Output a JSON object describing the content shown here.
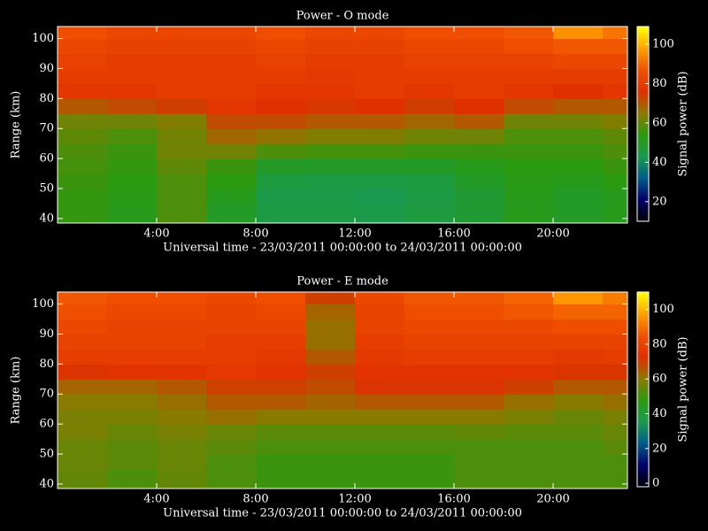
{
  "chart_data": [
    {
      "type": "heatmap",
      "title": "Power - O mode",
      "xlabel": "Universal time - 23/03/2011 00:00:00 to 24/03/2011 00:00:00",
      "ylabel": "Range (km)",
      "colorbar_label": "Signal power (dB)",
      "x_edges": [
        0,
        2,
        4,
        6,
        8,
        10,
        12,
        14,
        16,
        18,
        20,
        22,
        23
      ],
      "y_edges": [
        38.5,
        45,
        50,
        55,
        60,
        65,
        70,
        75,
        80,
        85,
        90,
        95,
        100,
        104
      ],
      "z": [
        [
          55,
          52,
          58,
          50,
          45,
          45,
          44,
          46,
          48,
          52,
          50,
          52
        ],
        [
          55,
          53,
          58,
          52,
          44,
          44,
          43,
          45,
          48,
          52,
          50,
          52
        ],
        [
          56,
          54,
          58,
          54,
          46,
          45,
          45,
          46,
          50,
          53,
          52,
          54
        ],
        [
          57,
          55,
          60,
          56,
          50,
          50,
          50,
          50,
          52,
          54,
          54,
          56
        ],
        [
          58,
          56,
          62,
          62,
          58,
          57,
          57,
          56,
          56,
          56,
          56,
          58
        ],
        [
          60,
          58,
          62,
          68,
          66,
          64,
          64,
          62,
          62,
          58,
          58,
          60
        ],
        [
          62,
          62,
          64,
          72,
          72,
          70,
          70,
          68,
          70,
          62,
          62,
          64
        ],
        [
          70,
          72,
          74,
          78,
          76,
          75,
          76,
          74,
          76,
          72,
          70,
          70
        ],
        [
          78,
          78,
          80,
          80,
          78,
          78,
          80,
          78,
          80,
          78,
          76,
          78
        ],
        [
          80,
          80,
          80,
          80,
          80,
          79,
          80,
          80,
          80,
          80,
          80,
          80
        ],
        [
          82,
          80,
          80,
          80,
          82,
          80,
          80,
          82,
          82,
          82,
          84,
          84
        ],
        [
          84,
          82,
          82,
          82,
          84,
          82,
          82,
          84,
          84,
          86,
          88,
          88
        ],
        [
          86,
          84,
          84,
          84,
          86,
          84,
          84,
          86,
          86,
          88,
          96,
          92
        ]
      ],
      "xlim": [
        0,
        23
      ],
      "ylim": [
        38.5,
        104
      ],
      "xticks": [
        {
          "value": 4,
          "label": "4:00"
        },
        {
          "value": 8,
          "label": "8:00"
        },
        {
          "value": 12,
          "label": "12:00"
        },
        {
          "value": 16,
          "label": "16:00"
        },
        {
          "value": 20,
          "label": "20:00"
        }
      ],
      "yticks": [
        40,
        50,
        60,
        70,
        80,
        90,
        100
      ],
      "clim": [
        10,
        109
      ],
      "cticks": [
        20,
        40,
        60,
        80,
        100
      ],
      "colormap": [
        "#000000",
        "#00006a",
        "#005a8a",
        "#1a9a50",
        "#2a9a10",
        "#8a7a00",
        "#e03000",
        "#f05000",
        "#ffa000",
        "#ffff00"
      ]
    },
    {
      "type": "heatmap",
      "title": "Power - E mode",
      "xlabel": "Universal time - 23/03/2011 00:00:00 to 24/03/2011 00:00:00",
      "ylabel": "Range (km)",
      "colorbar_label": "Signal power (dB)",
      "x_edges": [
        0,
        2,
        4,
        6,
        8,
        10,
        12,
        14,
        16,
        18,
        20,
        22,
        23
      ],
      "y_edges": [
        38.5,
        45,
        50,
        55,
        60,
        65,
        70,
        75,
        80,
        85,
        90,
        95,
        100,
        104
      ],
      "z": [
        [
          55,
          52,
          55,
          52,
          50,
          50,
          50,
          50,
          52,
          52,
          52,
          52
        ],
        [
          56,
          54,
          56,
          52,
          50,
          50,
          50,
          50,
          52,
          52,
          52,
          52
        ],
        [
          56,
          54,
          56,
          54,
          52,
          52,
          52,
          52,
          52,
          52,
          52,
          54
        ],
        [
          58,
          56,
          58,
          56,
          54,
          54,
          54,
          54,
          55,
          54,
          54,
          56
        ],
        [
          58,
          58,
          60,
          62,
          60,
          60,
          60,
          60,
          60,
          58,
          56,
          58
        ],
        [
          60,
          60,
          62,
          66,
          66,
          64,
          66,
          66,
          66,
          62,
          60,
          62
        ],
        [
          64,
          64,
          66,
          70,
          70,
          68,
          72,
          72,
          72,
          70,
          66,
          66
        ],
        [
          72,
          74,
          74,
          76,
          74,
          70,
          74,
          74,
          74,
          74,
          72,
          72
        ],
        [
          78,
          78,
          78,
          78,
          76,
          66,
          76,
          78,
          78,
          78,
          76,
          78
        ],
        [
          80,
          80,
          80,
          78,
          78,
          62,
          78,
          80,
          80,
          80,
          80,
          80
        ],
        [
          82,
          80,
          80,
          80,
          80,
          62,
          80,
          82,
          82,
          82,
          84,
          84
        ],
        [
          84,
          82,
          82,
          80,
          82,
          64,
          80,
          84,
          84,
          86,
          88,
          88
        ],
        [
          86,
          84,
          84,
          82,
          84,
          70,
          82,
          86,
          86,
          88,
          96,
          92
        ]
      ],
      "xlim": [
        0,
        23
      ],
      "ylim": [
        38.5,
        104
      ],
      "xticks": [
        {
          "value": 4,
          "label": "4:00"
        },
        {
          "value": 8,
          "label": "8:00"
        },
        {
          "value": 12,
          "label": "12:00"
        },
        {
          "value": 16,
          "label": "16:00"
        },
        {
          "value": 20,
          "label": "20:00"
        }
      ],
      "yticks": [
        40,
        50,
        60,
        70,
        80,
        90,
        100
      ],
      "clim": [
        -2,
        110
      ],
      "cticks": [
        0,
        20,
        40,
        60,
        80,
        100
      ],
      "colormap": [
        "#000000",
        "#00006a",
        "#005a8a",
        "#1a9a50",
        "#2a9a10",
        "#8a7a00",
        "#e03000",
        "#f05000",
        "#ffa000",
        "#ffff00"
      ]
    }
  ]
}
